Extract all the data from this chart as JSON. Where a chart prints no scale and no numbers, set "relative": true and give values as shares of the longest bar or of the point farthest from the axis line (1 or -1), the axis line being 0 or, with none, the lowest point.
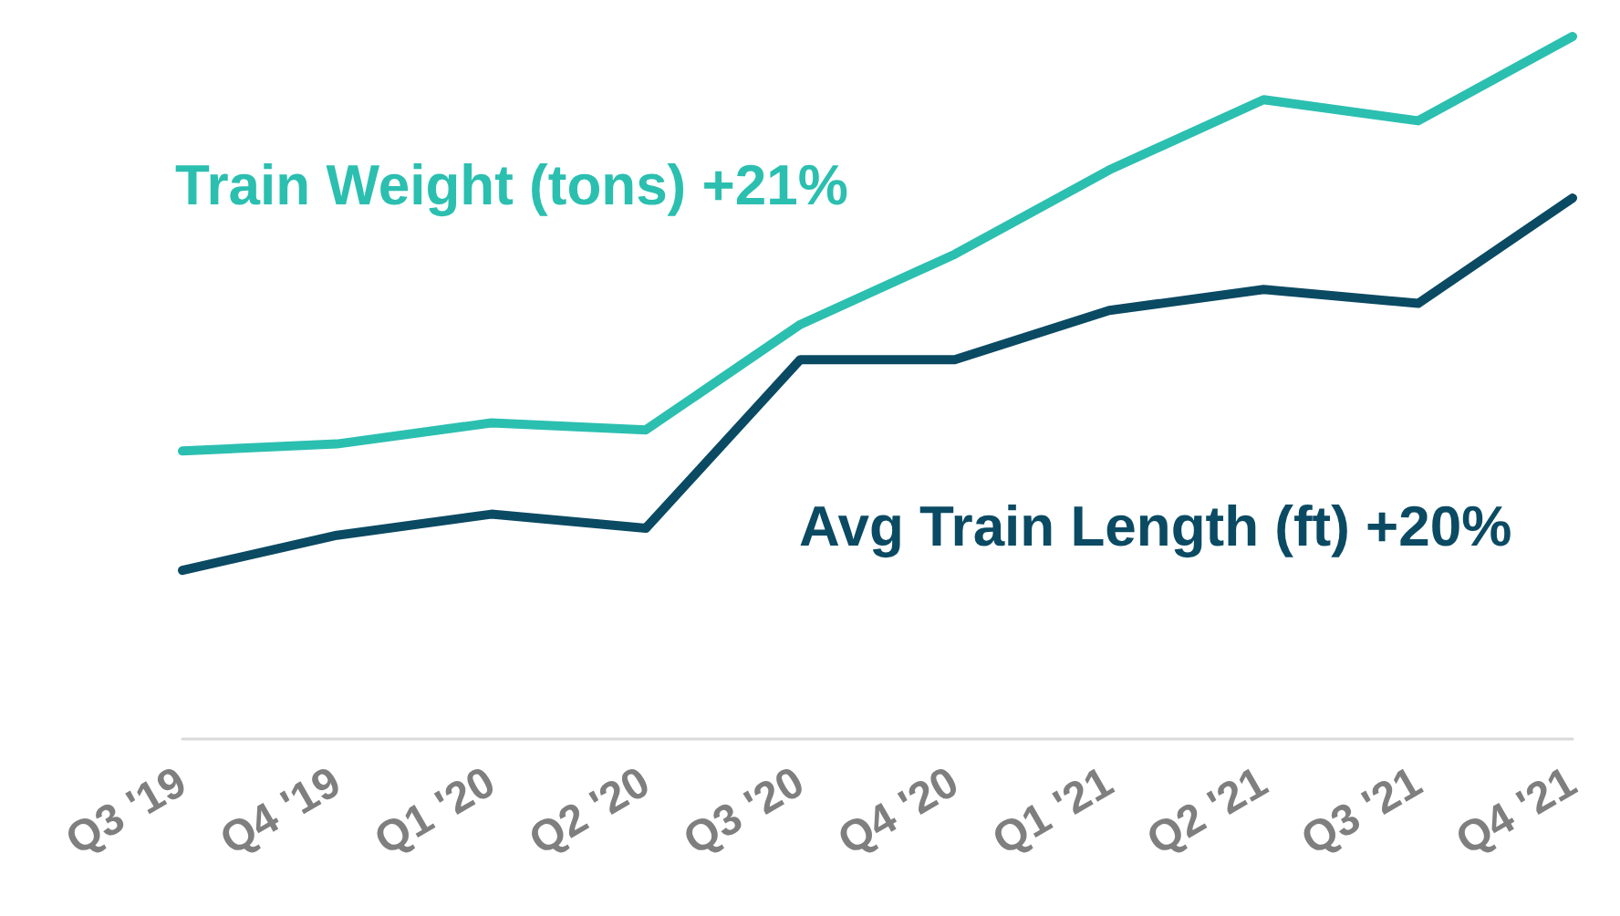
{
  "chart_data": {
    "type": "line",
    "relative": true,
    "legend": false,
    "grid": false,
    "marker": "none",
    "line_style": "solid",
    "categories": [
      "Q3 '19",
      "Q4 '19",
      "Q1 '20",
      "Q2 '20",
      "Q3 '20",
      "Q4 '20",
      "Q1 '21",
      "Q2 '21",
      "Q3 '21",
      "Q4 '21"
    ],
    "series": [
      {
        "name": "Train Weight (tons) +21%",
        "color": "#2bbfb0",
        "values": [
          0.41,
          0.42,
          0.45,
          0.44,
          0.59,
          0.69,
          0.81,
          0.91,
          0.88,
          1
        ]
      },
      {
        "name": "Avg Train Length (ft) +20%",
        "color": "#0b4a63",
        "values": [
          0.24,
          0.29,
          0.32,
          0.3,
          0.54,
          0.54,
          0.61,
          0.64,
          0.62,
          0.77
        ]
      }
    ]
  }
}
